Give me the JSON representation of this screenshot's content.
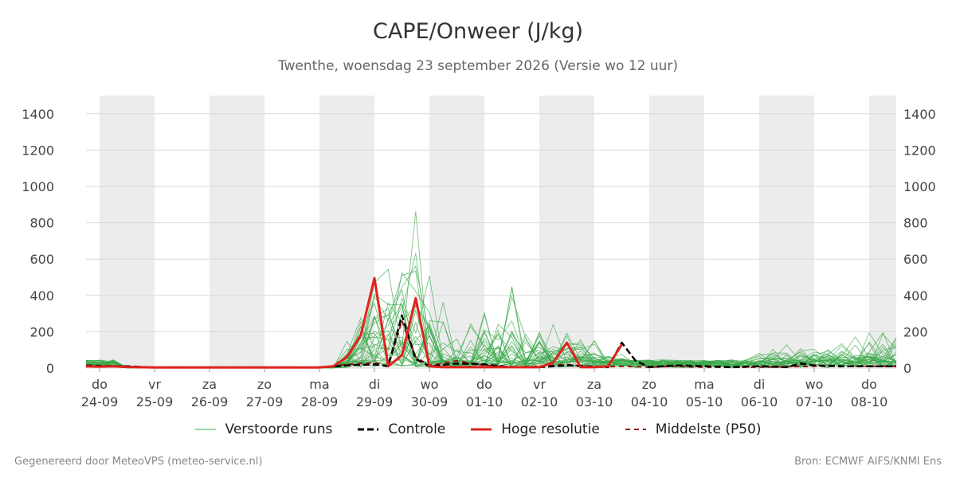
{
  "chart": {
    "title": "CAPE/Onweer (J/kg)",
    "subtitle": "Twenthe, woensdag 23 september 2026 (Versie wo 12 uur)",
    "footer_left": "Gegenereerd door MeteoVPS (meteo-service.nl)",
    "footer_right": "Bron: ECMWF AIFS/KNMI Ens"
  },
  "legend": {
    "perturbed": "Verstoorde runs",
    "control": "Controle",
    "hires": "Hoge resolutie",
    "median": "Middelste (P50)"
  },
  "colors": {
    "perturbed": "#3aa84a",
    "control": "#000000",
    "hires": "#e0231c",
    "median": "#9b1010",
    "shade": "#ececec",
    "grid": "#d9d9d9"
  },
  "chart_data": {
    "type": "line",
    "title": "CAPE/Onweer (J/kg)",
    "xlabel": "",
    "ylabel": "",
    "ylim": [
      0,
      1500
    ],
    "yticks": [
      0,
      200,
      400,
      600,
      800,
      1000,
      1200,
      1400
    ],
    "grid": true,
    "legend_position": "bottom",
    "x_days": [
      -0.25,
      13.5
    ],
    "x_ticks": [
      {
        "day": 0,
        "weekday": "do",
        "date": "24-09"
      },
      {
        "day": 1,
        "weekday": "vr",
        "date": "25-09"
      },
      {
        "day": 2,
        "weekday": "za",
        "date": "26-09"
      },
      {
        "day": 3,
        "weekday": "zo",
        "date": "27-09"
      },
      {
        "day": 4,
        "weekday": "ma",
        "date": "28-09"
      },
      {
        "day": 5,
        "weekday": "di",
        "date": "29-09"
      },
      {
        "day": 6,
        "weekday": "wo",
        "date": "30-09"
      },
      {
        "day": 7,
        "weekday": "do",
        "date": "01-10"
      },
      {
        "day": 8,
        "weekday": "vr",
        "date": "02-10"
      },
      {
        "day": 9,
        "weekday": "za",
        "date": "03-10"
      },
      {
        "day": 10,
        "weekday": "zo",
        "date": "04-10"
      },
      {
        "day": 11,
        "weekday": "ma",
        "date": "05-10"
      },
      {
        "day": 12,
        "weekday": "di",
        "date": "06-10"
      },
      {
        "day": 13,
        "weekday": "wo",
        "date": "07-10"
      },
      {
        "day": 14,
        "weekday": "do",
        "date": "08-10"
      }
    ],
    "shaded_days": [
      [
        0,
        1
      ],
      [
        2,
        3
      ],
      [
        4,
        5
      ],
      [
        6,
        7
      ],
      [
        8,
        9
      ],
      [
        10,
        11
      ],
      [
        12,
        13
      ],
      [
        14,
        14.5
      ]
    ],
    "series": [
      {
        "name": "Hoge resolutie",
        "role": "hires",
        "x": [
          -0.25,
          0,
          0.25,
          0.5,
          1,
          2,
          3,
          4,
          4.25,
          4.5,
          4.75,
          5,
          5.25,
          5.5,
          5.75,
          6,
          6.25,
          6.5,
          7,
          7.5,
          8,
          8.25,
          8.5,
          8.75,
          9,
          9.25,
          9.5
        ],
        "y": [
          10,
          8,
          10,
          6,
          3,
          3,
          3,
          3,
          10,
          60,
          180,
          495,
          10,
          70,
          385,
          10,
          5,
          5,
          5,
          5,
          5,
          30,
          140,
          5,
          5,
          10,
          130
        ]
      },
      {
        "name": "Controle",
        "role": "control",
        "x": [
          -0.25,
          0,
          0.5,
          1,
          2,
          3,
          4,
          4.5,
          5,
          5.25,
          5.5,
          5.75,
          6,
          6.5,
          7,
          7.5,
          8,
          8.5,
          9,
          9.25,
          9.5,
          9.75,
          10,
          10.5,
          11,
          11.5,
          12,
          12.5,
          12.75,
          13,
          13.5,
          14,
          14.5
        ],
        "y": [
          15,
          12,
          10,
          3,
          3,
          3,
          3,
          15,
          20,
          10,
          290,
          50,
          10,
          25,
          20,
          5,
          5,
          15,
          8,
          5,
          140,
          40,
          5,
          15,
          10,
          5,
          10,
          5,
          25,
          15,
          10,
          10,
          10
        ]
      },
      {
        "name": "Middelste (P50)",
        "role": "median",
        "x": [
          -0.25,
          0,
          0.5,
          1,
          2,
          3,
          4,
          4.5,
          5,
          5.25,
          5.5,
          5.75,
          6,
          6.5,
          7,
          7.5,
          8,
          8.5,
          9,
          9.5,
          10,
          10.5,
          11,
          12,
          13,
          14,
          14.5
        ],
        "y": [
          8,
          10,
          8,
          3,
          3,
          3,
          3,
          20,
          30,
          10,
          260,
          60,
          15,
          40,
          15,
          5,
          10,
          20,
          5,
          10,
          5,
          10,
          5,
          5,
          10,
          10,
          10
        ]
      }
    ]
  }
}
